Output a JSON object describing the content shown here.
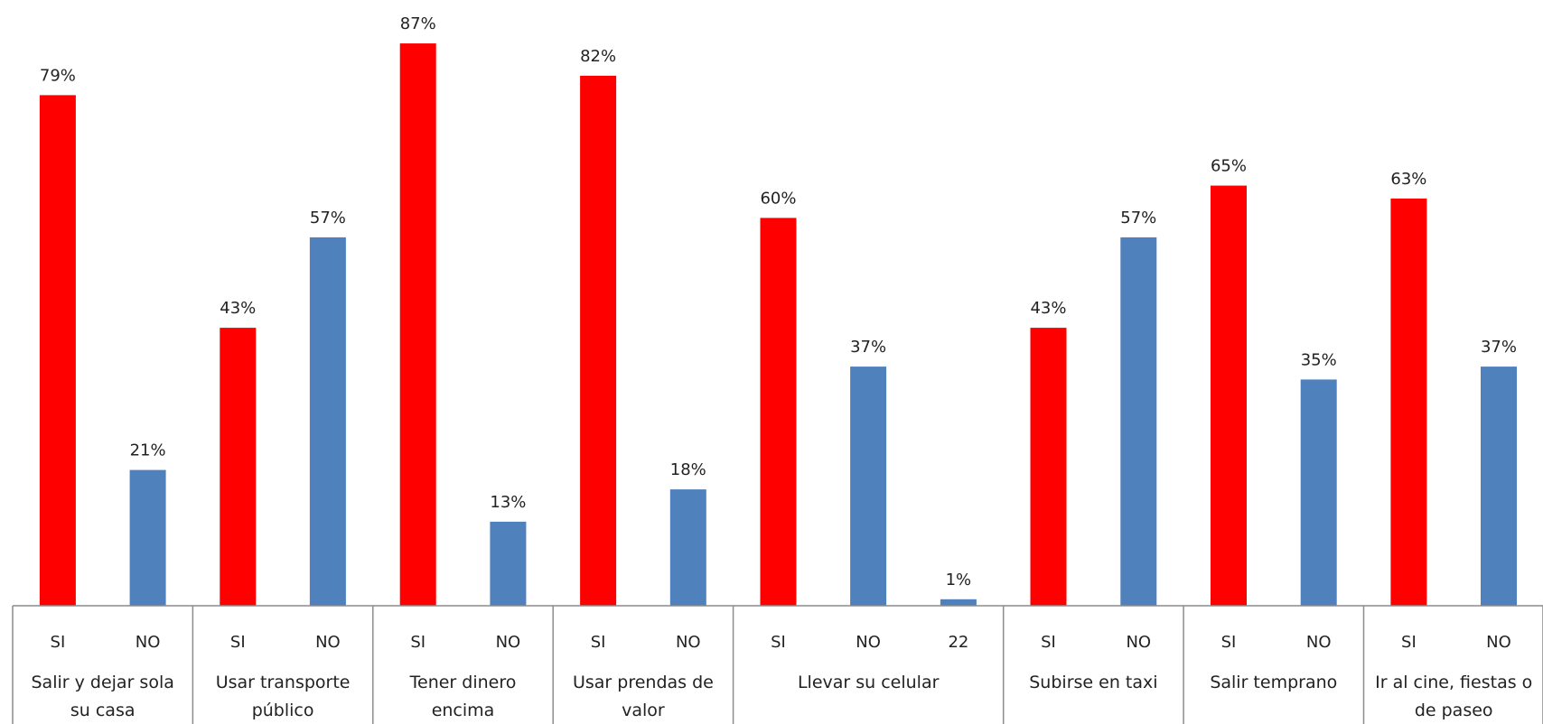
{
  "chart_data": {
    "type": "bar",
    "title": "",
    "xlabel": "",
    "ylabel": "",
    "ylim": [
      0,
      90
    ],
    "grid": false,
    "legend": "none",
    "colors": {
      "SI": "#ff0000",
      "NO": "#4f81bd",
      "22": "#4f81bd"
    },
    "groups": [
      {
        "label_lines": [
          "Salir y dejar sola",
          "su casa"
        ],
        "bars": [
          {
            "category": "SI",
            "value": 79,
            "label": "79%"
          },
          {
            "category": "NO",
            "value": 21,
            "label": "21%"
          }
        ]
      },
      {
        "label_lines": [
          "Usar transporte",
          "público"
        ],
        "bars": [
          {
            "category": "SI",
            "value": 43,
            "label": "43%"
          },
          {
            "category": "NO",
            "value": 57,
            "label": "57%"
          }
        ]
      },
      {
        "label_lines": [
          "Tener dinero",
          "encima"
        ],
        "bars": [
          {
            "category": "SI",
            "value": 87,
            "label": "87%"
          },
          {
            "category": "NO",
            "value": 13,
            "label": "13%"
          }
        ]
      },
      {
        "label_lines": [
          "Usar prendas de",
          "valor"
        ],
        "bars": [
          {
            "category": "SI",
            "value": 82,
            "label": "82%"
          },
          {
            "category": "NO",
            "value": 18,
            "label": "18%"
          }
        ]
      },
      {
        "label_lines": [
          "Llevar su celular"
        ],
        "bars": [
          {
            "category": "SI",
            "value": 60,
            "label": "60%"
          },
          {
            "category": "NO",
            "value": 37,
            "label": "37%"
          },
          {
            "category": "22",
            "value": 1,
            "label": "1%"
          }
        ]
      },
      {
        "label_lines": [
          "Subirse en taxi"
        ],
        "bars": [
          {
            "category": "SI",
            "value": 43,
            "label": "43%"
          },
          {
            "category": "NO",
            "value": 57,
            "label": "57%"
          }
        ]
      },
      {
        "label_lines": [
          "Salir temprano"
        ],
        "bars": [
          {
            "category": "SI",
            "value": 65,
            "label": "65%"
          },
          {
            "category": "NO",
            "value": 35,
            "label": "35%"
          }
        ]
      },
      {
        "label_lines": [
          "Ir al cine, fiestas o",
          "de paseo"
        ],
        "bars": [
          {
            "category": "SI",
            "value": 63,
            "label": "63%"
          },
          {
            "category": "NO",
            "value": 37,
            "label": "37%"
          }
        ]
      }
    ]
  }
}
